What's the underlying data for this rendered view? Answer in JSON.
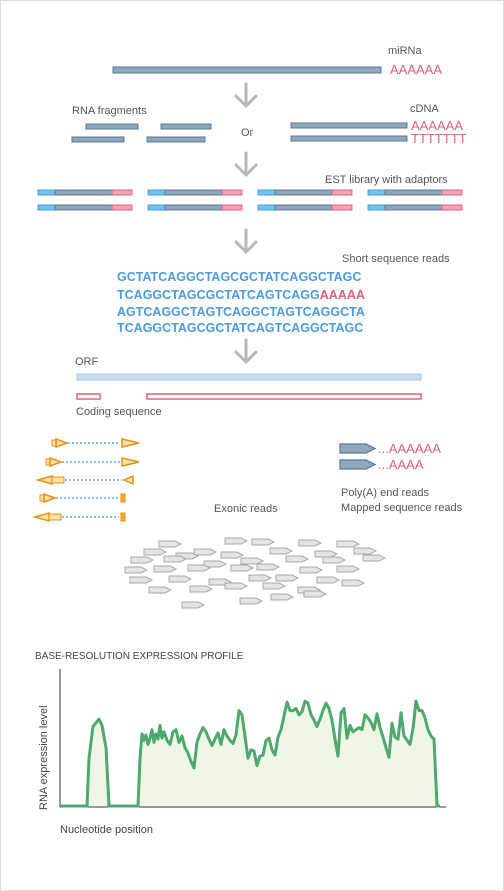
{
  "labels": {
    "mirna": "miRNa",
    "rna_fragments": "RNA fragments",
    "cdna": "cDNA",
    "or": "Or",
    "est_library": "EST library with adaptors",
    "short_reads": "Short sequence reads",
    "orf": "ORF",
    "coding_sequence": "Coding sequence",
    "exonic_reads": "Exonic reads",
    "polya_reads": "Poly(A) end reads",
    "mapped_reads": "Mapped sequence reads",
    "profile_title": "BASE-RESOLUTION EXPRESSION PROFILE",
    "y_axis": "RNA expression level",
    "x_axis": "Nucleotide position"
  },
  "poly_a": {
    "mirna_tail": "AAAAAA",
    "cdna_a": "AAAAAA",
    "cdna_t": "TTTTTTT",
    "read_tail": "AAAAA",
    "polya_long": "...AAAAAA",
    "polya_short": "...AAAA"
  },
  "sequences": {
    "line1": "GCTATCAGGCTAGCGCTATCAGGCTAGC",
    "line2": "TCAGGCTAGCGCTATCAGTCAGG",
    "line3": "AGTCAGGCTAGTCAGGCTAGTCAGGCTA",
    "line4": "TCAGGCTAGCGCTATCAGTCAGGCTAGC"
  },
  "colors": {
    "strand": "#5a7896",
    "strand_light": "#8eb0d2",
    "polya": "#e0607a",
    "sequence": "#4a9be0",
    "arrow": "#b8b8b8",
    "orf": "#b9d3ee",
    "read_orange": "#f5a623",
    "profile_line": "#4fa86e",
    "profile_fill": "#eef6e6"
  },
  "chart_data": {
    "type": "area",
    "title": "BASE-RESOLUTION EXPRESSION PROFILE",
    "xlabel": "Nucleotide position",
    "ylabel": "RNA expression level",
    "x": [
      0,
      8,
      26,
      28,
      32,
      38,
      41,
      45,
      48,
      70,
      77,
      79,
      81,
      83,
      85,
      87,
      89,
      91,
      93,
      95,
      97,
      99,
      101,
      103,
      106,
      109,
      112,
      115,
      118,
      121,
      124,
      127,
      130,
      133,
      136,
      139,
      142,
      145,
      148,
      151,
      154,
      157,
      160,
      163,
      166,
      169,
      172,
      175,
      178,
      181,
      184,
      187,
      190,
      193,
      196,
      199,
      202,
      205,
      208,
      211,
      214,
      217,
      220,
      223,
      226,
      229,
      232,
      235,
      238,
      241,
      244,
      247,
      250,
      253,
      256,
      259,
      262,
      265,
      268,
      271,
      274,
      277,
      280,
      283,
      286,
      289,
      292,
      295,
      298,
      301,
      304,
      307,
      310,
      313,
      316,
      319,
      322,
      325,
      328,
      331,
      334,
      337,
      340,
      343,
      346,
      349,
      352,
      355,
      358,
      361,
      364,
      367,
      370,
      373,
      376,
      377,
      379
    ],
    "y": [
      0,
      0,
      0,
      45,
      75,
      82,
      76,
      55,
      0,
      0,
      0,
      45,
      68,
      62,
      67,
      58,
      64,
      72,
      60,
      68,
      63,
      76,
      64,
      70,
      62,
      58,
      70,
      72,
      60,
      66,
      55,
      50,
      42,
      36,
      60,
      68,
      74,
      70,
      63,
      57,
      63,
      69,
      58,
      72,
      66,
      62,
      59,
      67,
      90,
      86,
      66,
      45,
      53,
      52,
      38,
      47,
      48,
      62,
      64,
      53,
      48,
      65,
      72,
      85,
      98,
      90,
      90,
      92,
      86,
      89,
      99,
      97,
      86,
      81,
      75,
      82,
      90,
      97,
      92,
      81,
      63,
      47,
      88,
      92,
      64,
      76,
      70,
      72,
      74,
      72,
      86,
      83,
      79,
      72,
      87,
      74,
      65,
      55,
      46,
      78,
      65,
      63,
      88,
      66,
      62,
      58,
      73,
      99,
      90,
      90,
      83,
      72,
      66,
      63,
      0,
      0,
      0
    ],
    "xlim": [
      0,
      379
    ],
    "ylim": [
      0,
      100
    ],
    "grid": false
  }
}
